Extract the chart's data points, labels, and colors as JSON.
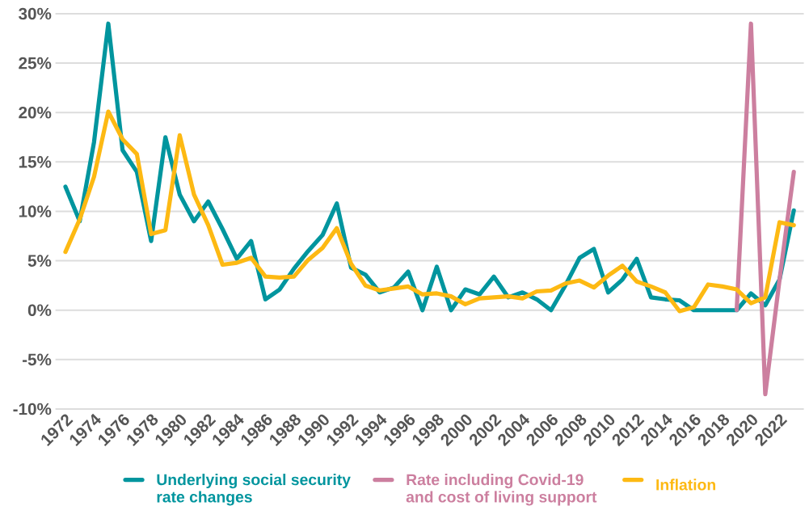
{
  "chart_data": {
    "type": "line",
    "categories": [
      "1972",
      null,
      "1974",
      null,
      "1976",
      null,
      "1978",
      null,
      "1980",
      null,
      "1982",
      null,
      "1984",
      null,
      "1986",
      null,
      "1988",
      null,
      "1990",
      null,
      "1992",
      null,
      "1994",
      null,
      "1996",
      null,
      "1998",
      null,
      "2000",
      null,
      "2002",
      null,
      "2004",
      null,
      "2006",
      null,
      "2008",
      null,
      "2010",
      null,
      "2012",
      null,
      "2014",
      null,
      "2016",
      null,
      "2018",
      null,
      "2020",
      null,
      "2022",
      null
    ],
    "series": [
      {
        "name": "Underlying social security rate changes",
        "color": "#00959e",
        "values": [
          12.5,
          9,
          17,
          29,
          16.2,
          14,
          7,
          17.5,
          11.7,
          9,
          11,
          8.2,
          5.2,
          7,
          1.1,
          2.1,
          4.2,
          6,
          7.6,
          10.8,
          4.3,
          3.6,
          1.8,
          2.3,
          3.9,
          0,
          4.4,
          0,
          2.1,
          1.6,
          3.4,
          1.3,
          1.8,
          1.1,
          0,
          2.5,
          5.3,
          6.2,
          1.8,
          3.1,
          5.2,
          1.3,
          1.1,
          1.0,
          0,
          0,
          0,
          0,
          1.7,
          0.5,
          3.1,
          10.1
        ]
      },
      {
        "name": "Rate including Covid-19 and cost of living support",
        "color": "#cc7f9f",
        "values": [
          null,
          null,
          null,
          null,
          null,
          null,
          null,
          null,
          null,
          null,
          null,
          null,
          null,
          null,
          null,
          null,
          null,
          null,
          null,
          null,
          null,
          null,
          null,
          null,
          null,
          null,
          null,
          null,
          null,
          null,
          null,
          null,
          null,
          null,
          null,
          null,
          null,
          null,
          null,
          null,
          null,
          null,
          null,
          null,
          null,
          null,
          null,
          0,
          29,
          -8.5,
          3.1,
          14
        ]
      },
      {
        "name": "Inflation",
        "color": "#fdb913",
        "values": [
          5.9,
          9.2,
          13.5,
          20.1,
          17.3,
          15.8,
          7.7,
          8.1,
          17.7,
          11.7,
          8.6,
          4.6,
          4.8,
          5.3,
          3.4,
          3.3,
          3.4,
          5.1,
          6.3,
          8.3,
          4.7,
          2.5,
          2.0,
          2.2,
          2.4,
          1.6,
          1.7,
          1.4,
          0.6,
          1.2,
          1.3,
          1.4,
          1.2,
          1.9,
          2.0,
          2.7,
          3.0,
          2.3,
          3.5,
          4.5,
          2.9,
          2.4,
          1.8,
          -0.1,
          0.3,
          2.6,
          2.4,
          2.1,
          0.7,
          1.3,
          8.9,
          8.6
        ]
      }
    ],
    "ylim": [
      -10,
      30
    ],
    "yticks": [
      {
        "value": -10,
        "label": "-10%"
      },
      {
        "value": -5,
        "label": "-5%"
      },
      {
        "value": 0,
        "label": "0%"
      },
      {
        "value": 5,
        "label": "5%"
      },
      {
        "value": 10,
        "label": "10%"
      },
      {
        "value": 15,
        "label": "15%"
      },
      {
        "value": 20,
        "label": "20%"
      },
      {
        "value": 25,
        "label": "25%"
      },
      {
        "value": 30,
        "label": "30%"
      }
    ],
    "grid": "y",
    "legend": "bottom",
    "marker": "none",
    "line_style": "solid"
  }
}
